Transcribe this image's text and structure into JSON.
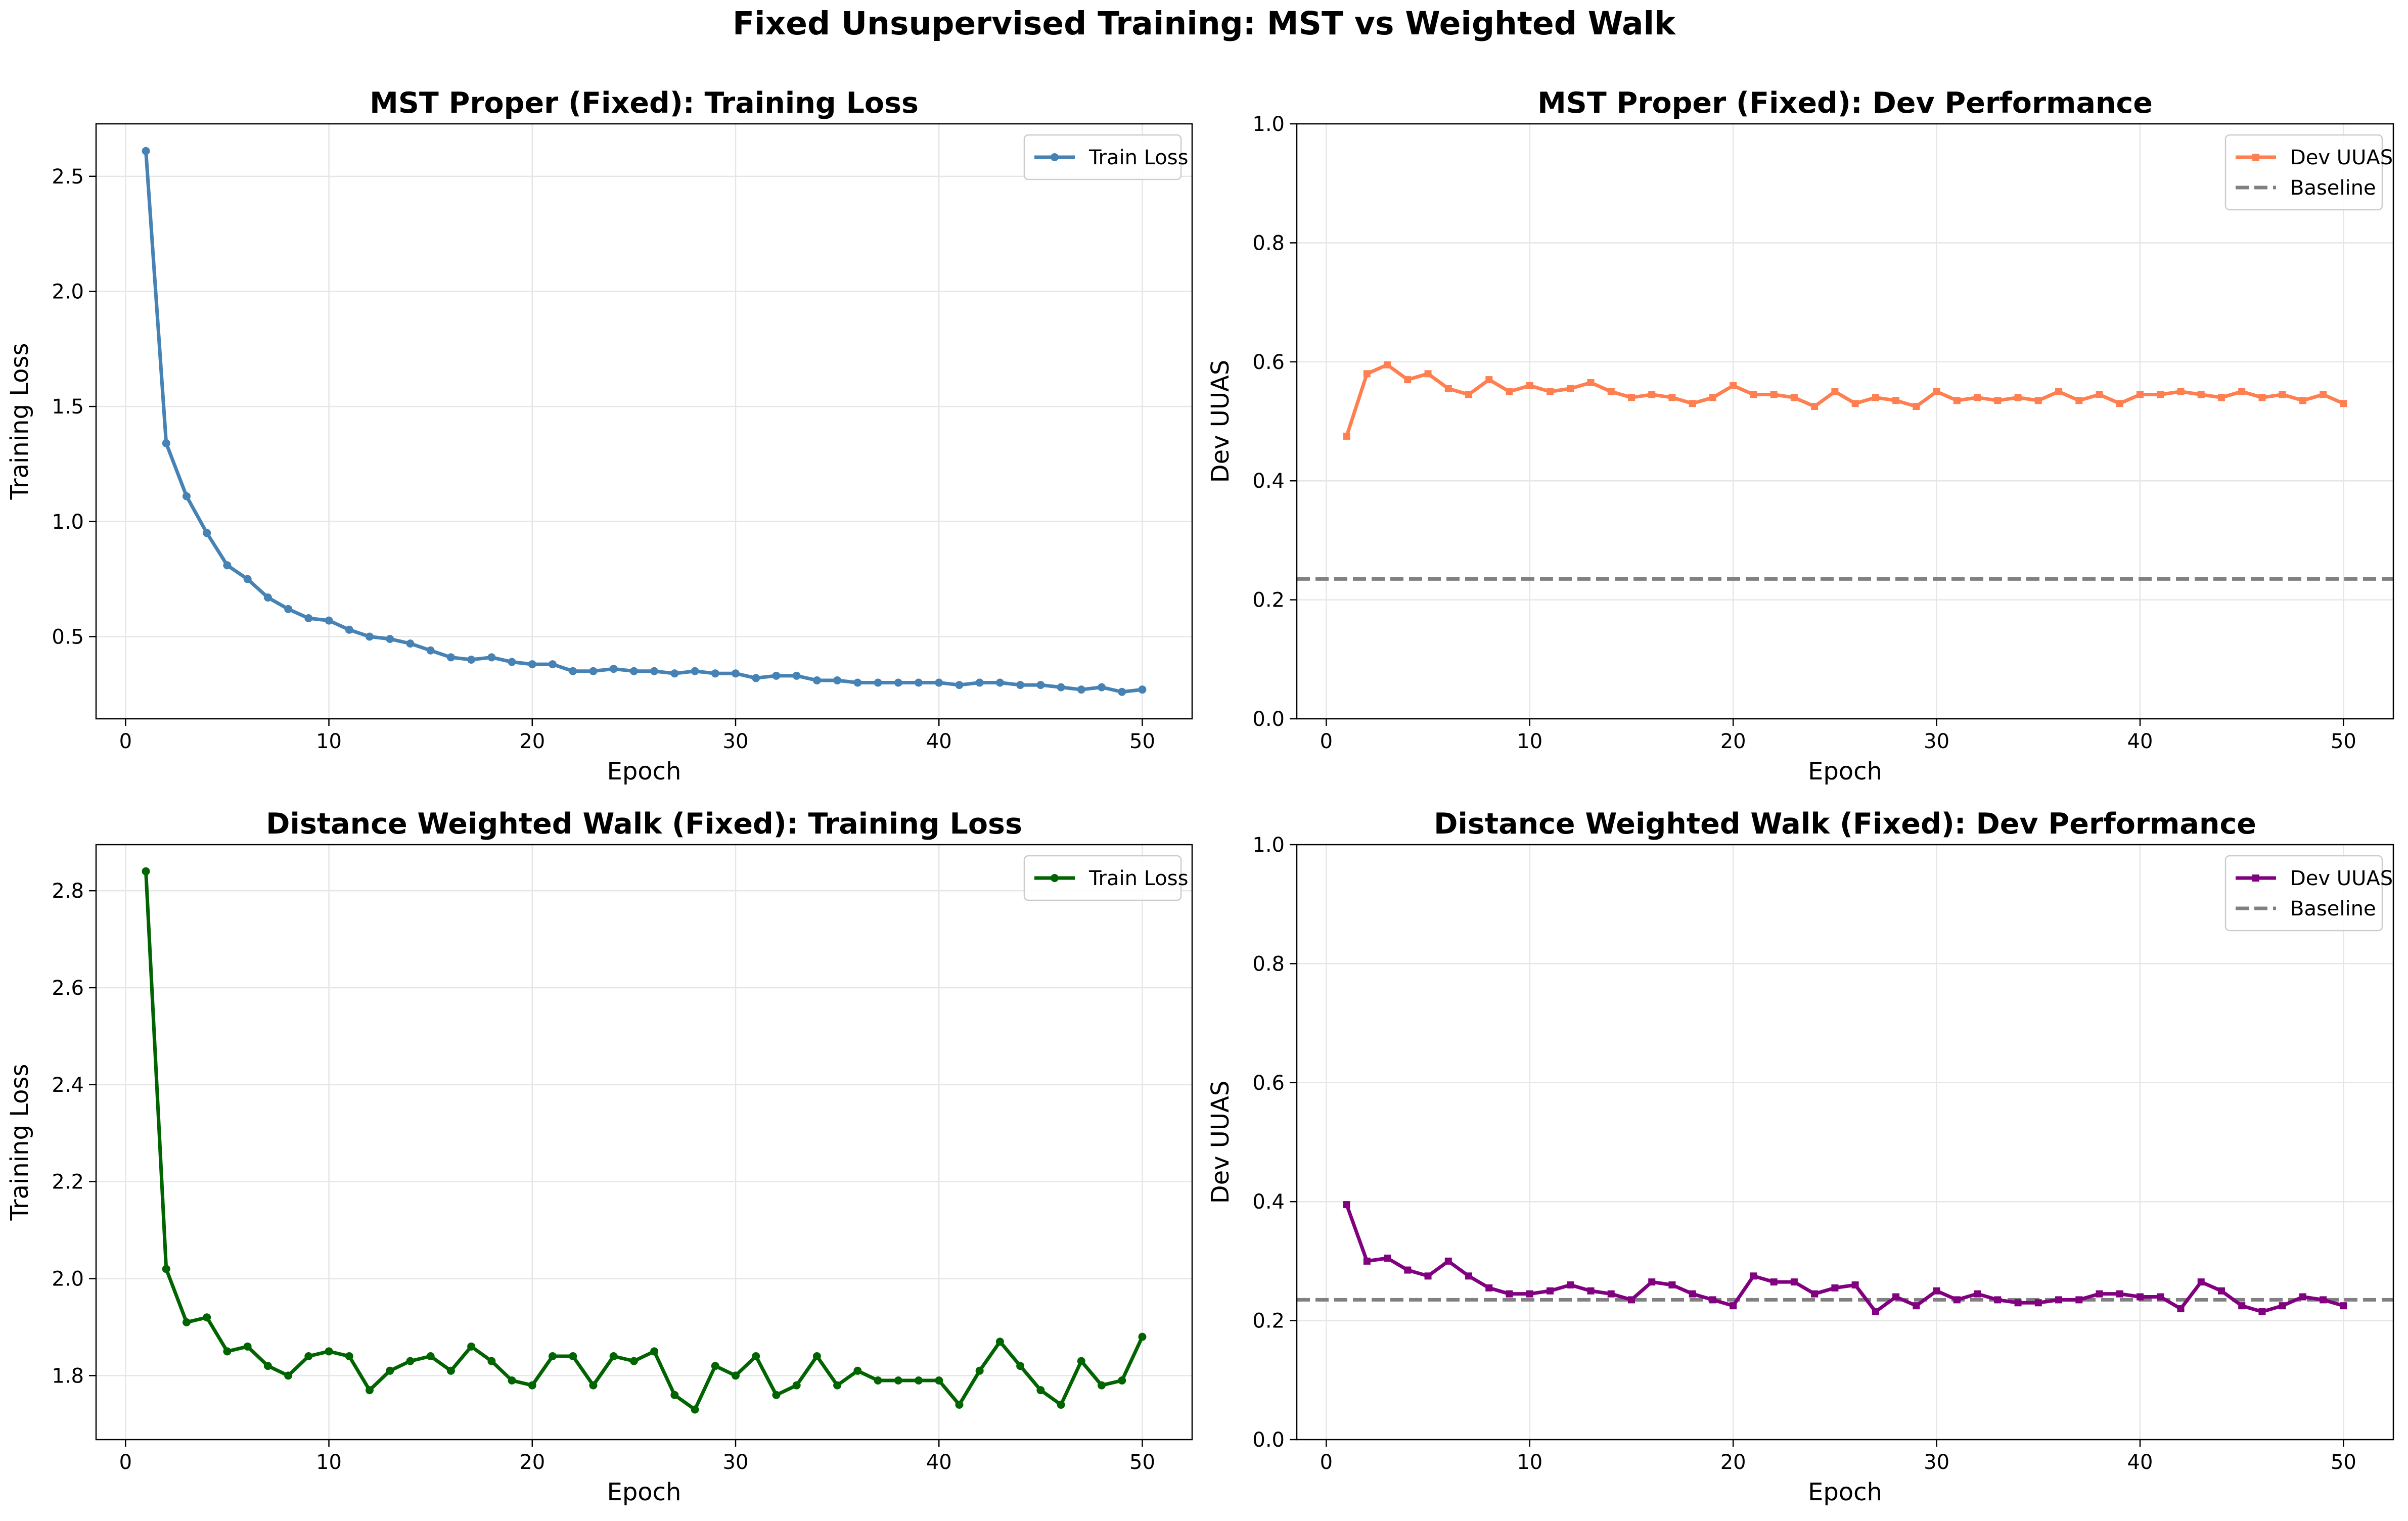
{
  "figure": {
    "title": "Fixed Unsupervised Training: MST vs Weighted Walk"
  },
  "colors": {
    "mst_loss": "#4682b4",
    "mst_dev": "#ff7f50",
    "walk_loss": "#006400",
    "walk_dev": "#800080",
    "baseline": "#808080",
    "grid": "#e6e6e6"
  },
  "chart_data": [
    {
      "id": "mst-loss",
      "type": "line",
      "title": "MST Proper (Fixed): Training Loss",
      "xlabel": "Epoch",
      "ylabel": "Training Loss",
      "xlim": [
        -1.45,
        52.45
      ],
      "ylim": [
        0.143,
        2.728
      ],
      "xticks": [
        0,
        10,
        20,
        30,
        40,
        50
      ],
      "yticks": [
        0.5,
        1.0,
        1.5,
        2.0,
        2.5
      ],
      "ytick_labels": [
        "0.5",
        "1.0",
        "1.5",
        "2.0",
        "2.5"
      ],
      "grid": true,
      "legend_position": "top-right",
      "series": [
        {
          "name": "Train Loss",
          "color": "#4682b4",
          "marker": "circle",
          "x": [
            1,
            2,
            3,
            4,
            5,
            6,
            7,
            8,
            9,
            10,
            11,
            12,
            13,
            14,
            15,
            16,
            17,
            18,
            19,
            20,
            21,
            22,
            23,
            24,
            25,
            26,
            27,
            28,
            29,
            30,
            31,
            32,
            33,
            34,
            35,
            36,
            37,
            38,
            39,
            40,
            41,
            42,
            43,
            44,
            45,
            46,
            47,
            48,
            49,
            50
          ],
          "values": [
            2.61,
            1.34,
            1.11,
            0.95,
            0.81,
            0.75,
            0.67,
            0.62,
            0.58,
            0.57,
            0.53,
            0.5,
            0.49,
            0.47,
            0.44,
            0.41,
            0.4,
            0.41,
            0.39,
            0.38,
            0.38,
            0.35,
            0.35,
            0.36,
            0.35,
            0.35,
            0.34,
            0.35,
            0.34,
            0.34,
            0.32,
            0.33,
            0.33,
            0.31,
            0.31,
            0.3,
            0.3,
            0.3,
            0.3,
            0.3,
            0.29,
            0.3,
            0.3,
            0.29,
            0.29,
            0.28,
            0.27,
            0.28,
            0.26,
            0.27
          ]
        }
      ]
    },
    {
      "id": "mst-dev",
      "type": "line",
      "title": "MST Proper (Fixed): Dev Performance",
      "xlabel": "Epoch",
      "ylabel": "Dev UUAS",
      "xlim": [
        -1.45,
        52.45
      ],
      "ylim": [
        0.0,
        1.0
      ],
      "xticks": [
        0,
        10,
        20,
        30,
        40,
        50
      ],
      "yticks": [
        0.0,
        0.2,
        0.4,
        0.6,
        0.8,
        1.0
      ],
      "ytick_labels": [
        "0.0",
        "0.2",
        "0.4",
        "0.6",
        "0.8",
        "1.0"
      ],
      "grid": true,
      "legend_position": "top-right",
      "baseline": {
        "name": "Baseline",
        "value": 0.235,
        "color": "#808080"
      },
      "series": [
        {
          "name": "Dev UUAS",
          "color": "#ff7f50",
          "marker": "square",
          "x": [
            1,
            2,
            3,
            4,
            5,
            6,
            7,
            8,
            9,
            10,
            11,
            12,
            13,
            14,
            15,
            16,
            17,
            18,
            19,
            20,
            21,
            22,
            23,
            24,
            25,
            26,
            27,
            28,
            29,
            30,
            31,
            32,
            33,
            34,
            35,
            36,
            37,
            38,
            39,
            40,
            41,
            42,
            43,
            44,
            45,
            46,
            47,
            48,
            49,
            50
          ],
          "values": [
            0.475,
            0.58,
            0.595,
            0.57,
            0.58,
            0.555,
            0.545,
            0.57,
            0.55,
            0.56,
            0.55,
            0.555,
            0.565,
            0.55,
            0.54,
            0.545,
            0.54,
            0.53,
            0.54,
            0.56,
            0.545,
            0.545,
            0.54,
            0.525,
            0.55,
            0.53,
            0.54,
            0.535,
            0.525,
            0.55,
            0.535,
            0.54,
            0.535,
            0.54,
            0.535,
            0.55,
            0.535,
            0.545,
            0.53,
            0.545,
            0.545,
            0.55,
            0.545,
            0.54,
            0.55,
            0.54,
            0.545,
            0.535,
            0.545,
            0.53
          ]
        }
      ]
    },
    {
      "id": "walk-loss",
      "type": "line",
      "title": "Distance Weighted Walk (Fixed): Training Loss",
      "xlabel": "Epoch",
      "ylabel": "Training Loss",
      "xlim": [
        -1.45,
        52.45
      ],
      "ylim": [
        1.668,
        2.895
      ],
      "xticks": [
        0,
        10,
        20,
        30,
        40,
        50
      ],
      "yticks": [
        1.8,
        2.0,
        2.2,
        2.4,
        2.6,
        2.8
      ],
      "ytick_labels": [
        "1.8",
        "2.0",
        "2.2",
        "2.4",
        "2.6",
        "2.8"
      ],
      "grid": true,
      "legend_position": "top-right",
      "series": [
        {
          "name": "Train Loss",
          "color": "#006400",
          "marker": "circle",
          "x": [
            1,
            2,
            3,
            4,
            5,
            6,
            7,
            8,
            9,
            10,
            11,
            12,
            13,
            14,
            15,
            16,
            17,
            18,
            19,
            20,
            21,
            22,
            23,
            24,
            25,
            26,
            27,
            28,
            29,
            30,
            31,
            32,
            33,
            34,
            35,
            36,
            37,
            38,
            39,
            40,
            41,
            42,
            43,
            44,
            45,
            46,
            47,
            48,
            49,
            50
          ],
          "values": [
            2.84,
            2.02,
            1.91,
            1.92,
            1.85,
            1.86,
            1.82,
            1.8,
            1.84,
            1.85,
            1.84,
            1.77,
            1.81,
            1.83,
            1.84,
            1.81,
            1.86,
            1.83,
            1.79,
            1.78,
            1.84,
            1.84,
            1.78,
            1.84,
            1.83,
            1.85,
            1.76,
            1.73,
            1.82,
            1.8,
            1.84,
            1.76,
            1.78,
            1.84,
            1.78,
            1.81,
            1.79,
            1.79,
            1.79,
            1.79,
            1.74,
            1.81,
            1.87,
            1.82,
            1.77,
            1.74,
            1.83,
            1.78,
            1.79,
            1.88
          ]
        }
      ]
    },
    {
      "id": "walk-dev",
      "type": "line",
      "title": "Distance Weighted Walk (Fixed): Dev Performance",
      "xlabel": "Epoch",
      "ylabel": "Dev UUAS",
      "xlim": [
        -1.45,
        52.45
      ],
      "ylim": [
        0.0,
        1.0
      ],
      "xticks": [
        0,
        10,
        20,
        30,
        40,
        50
      ],
      "yticks": [
        0.0,
        0.2,
        0.4,
        0.6,
        0.8,
        1.0
      ],
      "ytick_labels": [
        "0.0",
        "0.2",
        "0.4",
        "0.6",
        "0.8",
        "1.0"
      ],
      "grid": true,
      "legend_position": "top-right",
      "baseline": {
        "name": "Baseline",
        "value": 0.235,
        "color": "#808080"
      },
      "series": [
        {
          "name": "Dev UUAS",
          "color": "#800080",
          "marker": "square",
          "x": [
            1,
            2,
            3,
            4,
            5,
            6,
            7,
            8,
            9,
            10,
            11,
            12,
            13,
            14,
            15,
            16,
            17,
            18,
            19,
            20,
            21,
            22,
            23,
            24,
            25,
            26,
            27,
            28,
            29,
            30,
            31,
            32,
            33,
            34,
            35,
            36,
            37,
            38,
            39,
            40,
            41,
            42,
            43,
            44,
            45,
            46,
            47,
            48,
            49,
            50
          ],
          "values": [
            0.395,
            0.3,
            0.305,
            0.285,
            0.275,
            0.3,
            0.275,
            0.255,
            0.245,
            0.245,
            0.25,
            0.26,
            0.25,
            0.245,
            0.235,
            0.265,
            0.26,
            0.245,
            0.235,
            0.225,
            0.275,
            0.265,
            0.265,
            0.245,
            0.255,
            0.26,
            0.215,
            0.24,
            0.225,
            0.25,
            0.235,
            0.245,
            0.235,
            0.23,
            0.23,
            0.235,
            0.235,
            0.245,
            0.245,
            0.24,
            0.24,
            0.22,
            0.265,
            0.25,
            0.225,
            0.215,
            0.225,
            0.24,
            0.235,
            0.225
          ]
        }
      ]
    }
  ]
}
